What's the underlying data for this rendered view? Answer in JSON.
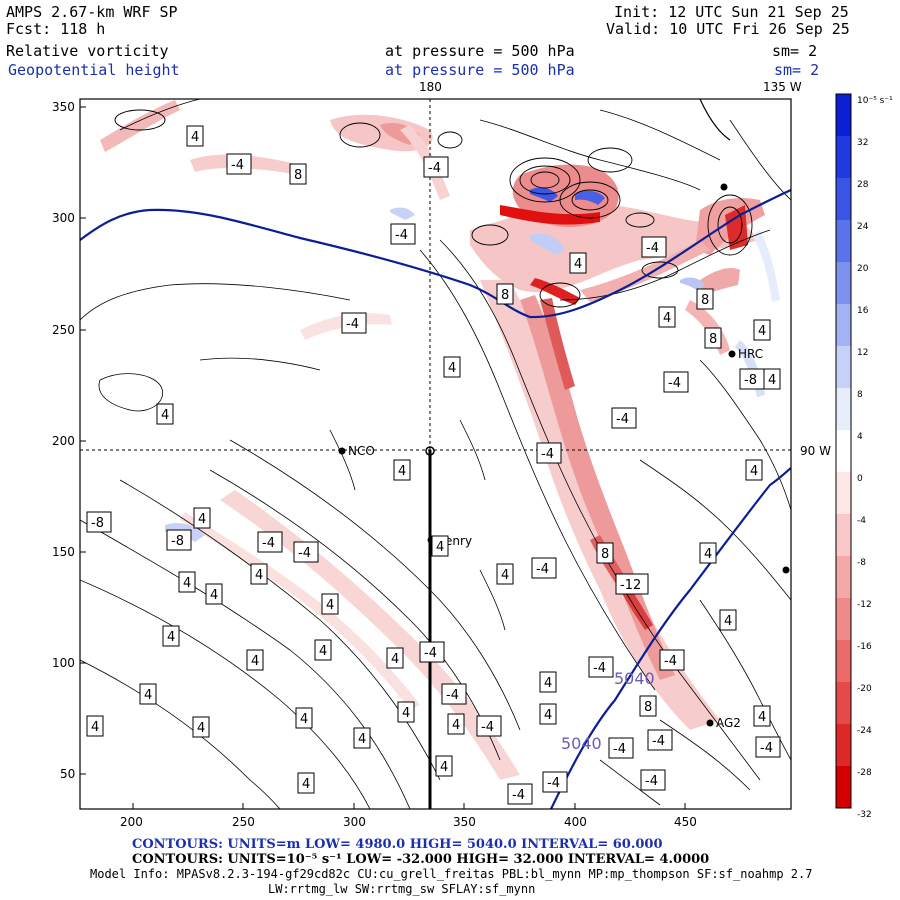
{
  "header": {
    "model": "AMPS 2.67-km WRF SP",
    "fcst": "Fcst:  118 h",
    "init": "Init: 12 UTC Sun 21 Sep 25",
    "valid": "Valid: 10 UTC Fri 26 Sep 25",
    "field1_name": "Relative vorticity",
    "field1_level": "at pressure =  500 hPa",
    "field1_sm": "sm= 2",
    "field2_name": "Geopotential height",
    "field2_level": "at pressure =  500 hPa",
    "field2_sm": "sm= 2"
  },
  "map": {
    "lon_top_1": "180",
    "lon_top_2": "135 W",
    "lon_right": "90 W",
    "x_ticks": [
      "200",
      "250",
      "300",
      "350",
      "400",
      "450"
    ],
    "y_ticks": [
      "350",
      "300",
      "250",
      "200",
      "150",
      "100",
      "50"
    ],
    "stations": [
      "NCO",
      "Henry",
      "HRC",
      "AG2"
    ],
    "height_labels": [
      "5040",
      "5040"
    ],
    "vort_labels": [
      "4",
      "-4",
      "8",
      "-8",
      "-12"
    ]
  },
  "colorbar": {
    "unit": "10⁻⁵ s⁻¹",
    "ticks": [
      "32",
      "28",
      "24",
      "20",
      "16",
      "12",
      "8",
      "4",
      "0",
      "-4",
      "-8",
      "-12",
      "-16",
      "-20",
      "-24",
      "-28",
      "-32"
    ],
    "colors": [
      "#0a1fd6",
      "#1f3ae0",
      "#3a55e6",
      "#5a73ea",
      "#7d92ee",
      "#a2b2f3",
      "#c6d1f7",
      "#e8edfb",
      "#ffffff",
      "#fde7e7",
      "#f9c8c8",
      "#f4a8a8",
      "#ef8a8a",
      "#ea6a6a",
      "#e44a4a",
      "#dd2828",
      "#d40000"
    ]
  },
  "footer": {
    "line1": "CONTOURS:  UNITS=m  LOW=   4980.0           HIGH=  5040.0        INTERVAL=   60.000",
    "line2": "CONTOURS:  UNITS=10⁻⁵ s⁻¹  LOW=  -32.000          HIGH=  32.000       INTERVAL=   4.0000",
    "line3": "Model Info: MPASv8.2.3-194-gf29cd82c CU:cu_grell_freitas PBL:bl_mynn MP:mp_thompson SF:sf_noahmp 2.7",
    "line4": "LW:rrtmg_lw SW:rrtmg_sw SFLAY:sf_mynn"
  }
}
